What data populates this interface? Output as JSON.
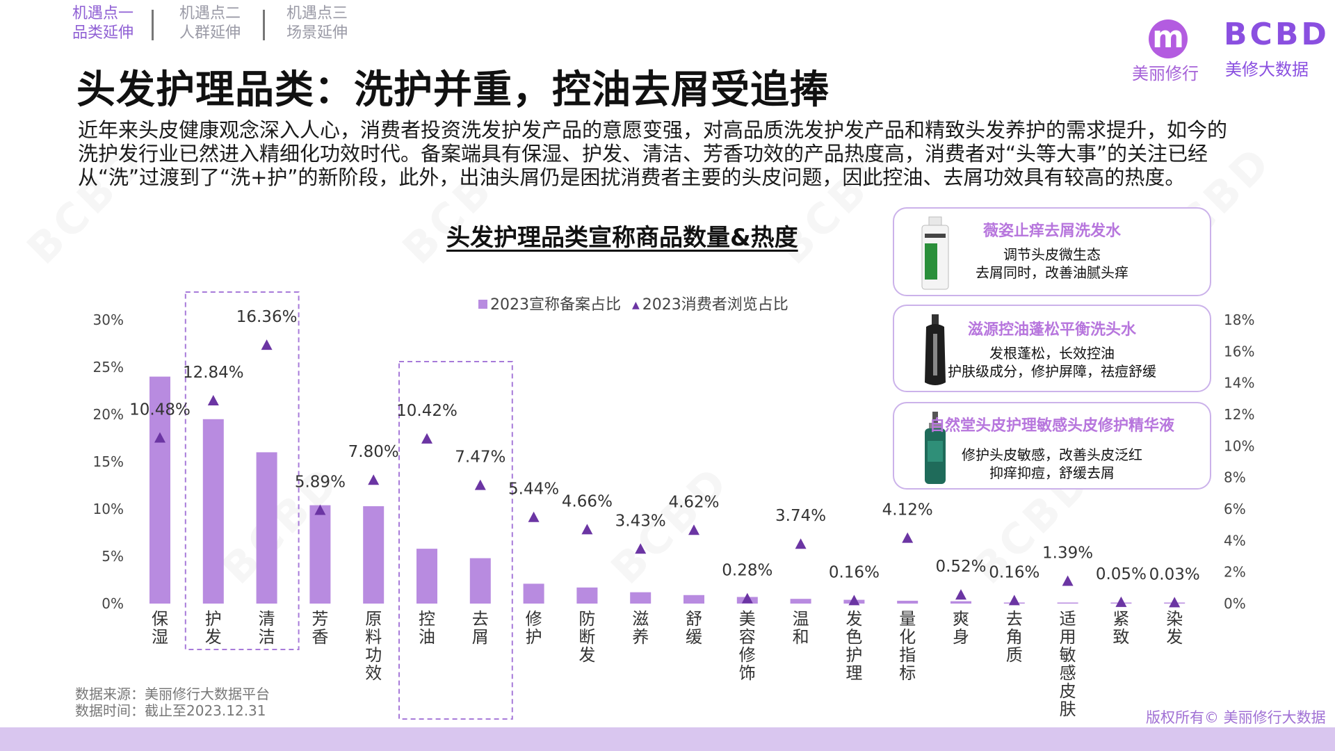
{
  "nav": {
    "items": [
      {
        "line1": "机遇点一",
        "line2": "品类延伸",
        "active": true
      },
      {
        "line1": "机遇点二",
        "line2": "人群延伸",
        "active": false
      },
      {
        "line1": "机遇点三",
        "line2": "场景延伸",
        "active": false
      }
    ]
  },
  "brand": {
    "logo_letter": "m",
    "logo_name": "美丽修行",
    "bcbd_text": "BCBD",
    "bcbd_name": "美修大数据"
  },
  "title": "头发护理品类：洗护并重，控油去屑受追捧",
  "description": "近年来头皮健康观念深入人心，消费者投资洗发护发产品的意愿变强，对高品质洗发护发产品和精致头发养护的需求提升，如今的洗护发行业已然进入精细化功效时代。备案端具有保湿、护发、清洁、芳香功效的产品热度高，消费者对“头等大事”的关注已经从“洗”过渡到了“洗+护”的新阶段，此外，出油头屑仍是困扰消费者主要的头皮问题，因此控油、去屑功效具有较高的热度。",
  "chart_title": "头发护理品类宣称商品数量&热度",
  "products": [
    {
      "name": "薇姿止痒去屑洗发水",
      "line1": "调节头皮微生态",
      "line2": "去屑同时，改善油腻头痒",
      "icon": "white-shampoo-bottle-icon"
    },
    {
      "name": "滋源控油蓬松平衡洗头水",
      "line1": "发根蓬松，长效控油",
      "line2": "护肤级成分，修护屏障，祛痘舒缓",
      "icon": "black-bottle-icon"
    },
    {
      "name": "自然堂头皮护理敏感头皮修护精华液",
      "line1": "修护头皮敏感，改善头皮泛红",
      "line2": "抑痒抑痘，舒缓去屑",
      "icon": "green-dropper-bottle-icon"
    }
  ],
  "source": {
    "line1": "数据来源：美丽修行大数据平台",
    "line2": "数据时间：截止至2023.12.31"
  },
  "copyright": "版权所有© 美丽修行大数据",
  "chart_data": {
    "type": "bar",
    "categories": [
      "保湿",
      "护发",
      "清洁",
      "芳香",
      "原料功效",
      "控油",
      "去屑",
      "修护",
      "防断发",
      "滋养",
      "舒缓",
      "美容修饰",
      "温和",
      "发色护理",
      "量化指标",
      "爽身",
      "去角质",
      "适用敏感皮肤",
      "紧致",
      "染发"
    ],
    "series": [
      {
        "name": "2023宣称备案占比",
        "axis": "left",
        "mark": "bar",
        "color": "#b88be0",
        "values": [
          24.0,
          19.5,
          16.0,
          10.4,
          10.3,
          5.8,
          4.8,
          2.1,
          1.7,
          1.2,
          0.9,
          0.7,
          0.5,
          0.4,
          0.3,
          0.25,
          0.1,
          0.1,
          0.05,
          0.03
        ]
      },
      {
        "name": "2023消费者浏览占比",
        "axis": "right",
        "mark": "triangle",
        "color": "#6b35a3",
        "values": [
          10.48,
          12.84,
          16.36,
          5.89,
          7.8,
          10.42,
          7.47,
          5.44,
          4.66,
          3.43,
          4.62,
          0.28,
          3.74,
          0.16,
          4.12,
          0.52,
          0.16,
          1.39,
          0.05,
          0.03
        ]
      }
    ],
    "data_labels": [
      "10.48%",
      "12.84%",
      "16.36%",
      "5.89%",
      "7.80%",
      "10.42%",
      "7.47%",
      "5.44%",
      "4.66%",
      "3.43%",
      "4.62%",
      "0.28%",
      "3.74%",
      "0.16%",
      "4.12%",
      "0.52%",
      "0.16%",
      "1.39%",
      "0.05%",
      "0.03%"
    ],
    "y_left": {
      "ticks": [
        "0%",
        "5%",
        "10%",
        "15%",
        "20%",
        "25%",
        "30%"
      ],
      "ylim": [
        0,
        30
      ]
    },
    "y_right": {
      "ticks": [
        "0%",
        "2%",
        "4%",
        "6%",
        "8%",
        "10%",
        "12%",
        "14%",
        "16%",
        "18%"
      ],
      "ylim": [
        0,
        18
      ]
    },
    "highlight_groups": [
      [
        "护发",
        "清洁"
      ],
      [
        "控油",
        "去屑"
      ]
    ],
    "legend": "top-center",
    "grid": false
  }
}
